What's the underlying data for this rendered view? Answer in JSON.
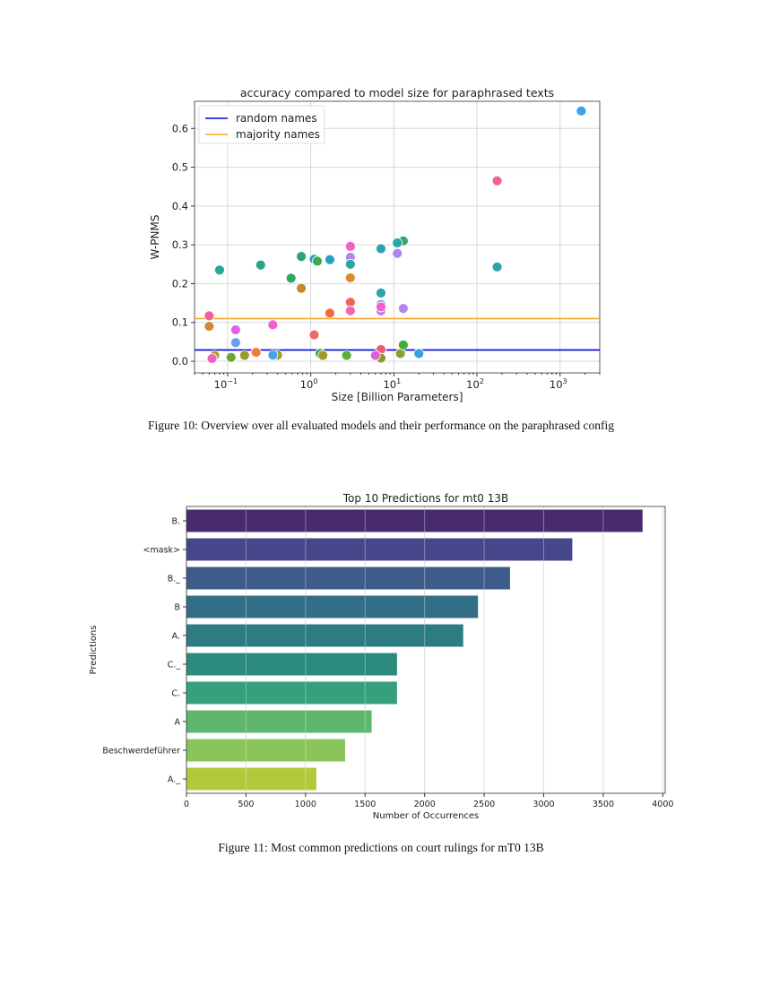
{
  "figures": [
    {
      "caption": "Figure 10: Overview over all evaluated models and their performance on the paraphrased config"
    },
    {
      "caption": "Figure 11: Most common predictions on court rulings for mT0 13B"
    }
  ],
  "chart_data": [
    {
      "type": "scatter",
      "title": "accuracy compared to model size for paraphrased texts",
      "xlabel": "Size [Billion Parameters]",
      "ylabel": "W-PNMS",
      "xscale": "log",
      "xlim": [
        0.04,
        3000
      ],
      "ylim": [
        -0.03,
        0.67
      ],
      "xticks": [
        {
          "v": 0.1,
          "base": "10",
          "exp": "−1"
        },
        {
          "v": 1,
          "base": "10",
          "exp": "0"
        },
        {
          "v": 10,
          "base": "10",
          "exp": "1"
        },
        {
          "v": 100,
          "base": "10",
          "exp": "2"
        },
        {
          "v": 1000,
          "base": "10",
          "exp": "3"
        }
      ],
      "yticks": [
        "0.0",
        "0.1",
        "0.2",
        "0.3",
        "0.4",
        "0.5",
        "0.6"
      ],
      "grid": true,
      "legend_position": "top-left",
      "hlines": [
        {
          "name": "random names",
          "y": 0.029,
          "color": "#0000e0"
        },
        {
          "name": "majority names",
          "y": 0.11,
          "color": "#f5a623"
        }
      ],
      "points": [
        {
          "x": 1800,
          "y": 0.645,
          "color": "#3ba3ec"
        },
        {
          "x": 175,
          "y": 0.465,
          "color": "#f0609a"
        },
        {
          "x": 175,
          "y": 0.243,
          "color": "#2aa5a5"
        },
        {
          "x": 13,
          "y": 0.31,
          "color": "#2eaa6e"
        },
        {
          "x": 11,
          "y": 0.305,
          "color": "#2aa5a0"
        },
        {
          "x": 7,
          "y": 0.29,
          "color": "#2ba3b5"
        },
        {
          "x": 11,
          "y": 0.278,
          "color": "#b085f0"
        },
        {
          "x": 13,
          "y": 0.136,
          "color": "#b085f0"
        },
        {
          "x": 3,
          "y": 0.296,
          "color": "#f060c8"
        },
        {
          "x": 3,
          "y": 0.268,
          "color": "#b085f0"
        },
        {
          "x": 3,
          "y": 0.25,
          "color": "#2aa5a5"
        },
        {
          "x": 3,
          "y": 0.215,
          "color": "#e08a30"
        },
        {
          "x": 3,
          "y": 0.152,
          "color": "#f0645a"
        },
        {
          "x": 3,
          "y": 0.13,
          "color": "#f066b8"
        },
        {
          "x": 2.7,
          "y": 0.015,
          "color": "#5aae3a"
        },
        {
          "x": 7,
          "y": 0.176,
          "color": "#2aa5a5"
        },
        {
          "x": 7,
          "y": 0.146,
          "color": "#5b9cf0"
        },
        {
          "x": 7,
          "y": 0.13,
          "color": "#c07ae8"
        },
        {
          "x": 7,
          "y": 0.14,
          "color": "#f060d0"
        },
        {
          "x": 7,
          "y": 0.03,
          "color": "#f05a78"
        },
        {
          "x": 7,
          "y": 0.008,
          "color": "#8a9a2a"
        },
        {
          "x": 6,
          "y": 0.015,
          "color": "#e060d8"
        },
        {
          "x": 12,
          "y": 0.02,
          "color": "#8aa030"
        },
        {
          "x": 13,
          "y": 0.042,
          "color": "#3ab03a"
        },
        {
          "x": 20,
          "y": 0.02,
          "color": "#3aa0e0"
        },
        {
          "x": 1.1,
          "y": 0.263,
          "color": "#2a9ec8"
        },
        {
          "x": 1.2,
          "y": 0.258,
          "color": "#3aaa50"
        },
        {
          "x": 1.7,
          "y": 0.262,
          "color": "#2aa0c0"
        },
        {
          "x": 1.1,
          "y": 0.068,
          "color": "#f06a6a"
        },
        {
          "x": 1.7,
          "y": 0.124,
          "color": "#f06a3a"
        },
        {
          "x": 1.3,
          "y": 0.02,
          "color": "#2aaa3a"
        },
        {
          "x": 1.4,
          "y": 0.015,
          "color": "#a09a30"
        },
        {
          "x": 0.77,
          "y": 0.27,
          "color": "#2aa57a"
        },
        {
          "x": 0.77,
          "y": 0.188,
          "color": "#c08a30"
        },
        {
          "x": 0.58,
          "y": 0.214,
          "color": "#30a860"
        },
        {
          "x": 0.25,
          "y": 0.248,
          "color": "#2aa58a"
        },
        {
          "x": 0.08,
          "y": 0.235,
          "color": "#2aa59a"
        },
        {
          "x": 0.06,
          "y": 0.117,
          "color": "#f0609a"
        },
        {
          "x": 0.06,
          "y": 0.09,
          "color": "#d08a30"
        },
        {
          "x": 0.07,
          "y": 0.015,
          "color": "#b09a30"
        },
        {
          "x": 0.065,
          "y": 0.007,
          "color": "#f060c0"
        },
        {
          "x": 0.125,
          "y": 0.081,
          "color": "#e060e8"
        },
        {
          "x": 0.125,
          "y": 0.048,
          "color": "#6a9ef0"
        },
        {
          "x": 0.11,
          "y": 0.01,
          "color": "#6aa830"
        },
        {
          "x": 0.16,
          "y": 0.015,
          "color": "#9a9a30"
        },
        {
          "x": 0.22,
          "y": 0.023,
          "color": "#f07a3a"
        },
        {
          "x": 0.35,
          "y": 0.094,
          "color": "#f060d0"
        },
        {
          "x": 0.4,
          "y": 0.016,
          "color": "#a0a030"
        },
        {
          "x": 0.35,
          "y": 0.016,
          "color": "#4aa0f0"
        }
      ]
    },
    {
      "type": "bar",
      "orientation": "horizontal",
      "title": "Top 10 Predictions for mt0 13B",
      "xlabel": "Number of Occurrences",
      "ylabel": "Predictions",
      "xlim": [
        0,
        4020
      ],
      "xticks": [
        "0",
        "500",
        "1000",
        "1500",
        "2000",
        "2500",
        "3000",
        "3500",
        "4000"
      ],
      "grid": true,
      "categories": [
        "B.",
        "<mask>",
        "B._",
        "B",
        "A.",
        "C._",
        "C.",
        "A",
        "Beschwerdeführer",
        "A._"
      ],
      "values": [
        3830,
        3240,
        2717,
        2448,
        2324,
        1768,
        1768,
        1555,
        1332,
        1091
      ],
      "colors": [
        "#482b6c",
        "#46478a",
        "#3e5c8a",
        "#336e87",
        "#2d7c83",
        "#2a8b7e",
        "#35a07a",
        "#5eb76c",
        "#89c55a",
        "#b4c93a"
      ]
    }
  ]
}
